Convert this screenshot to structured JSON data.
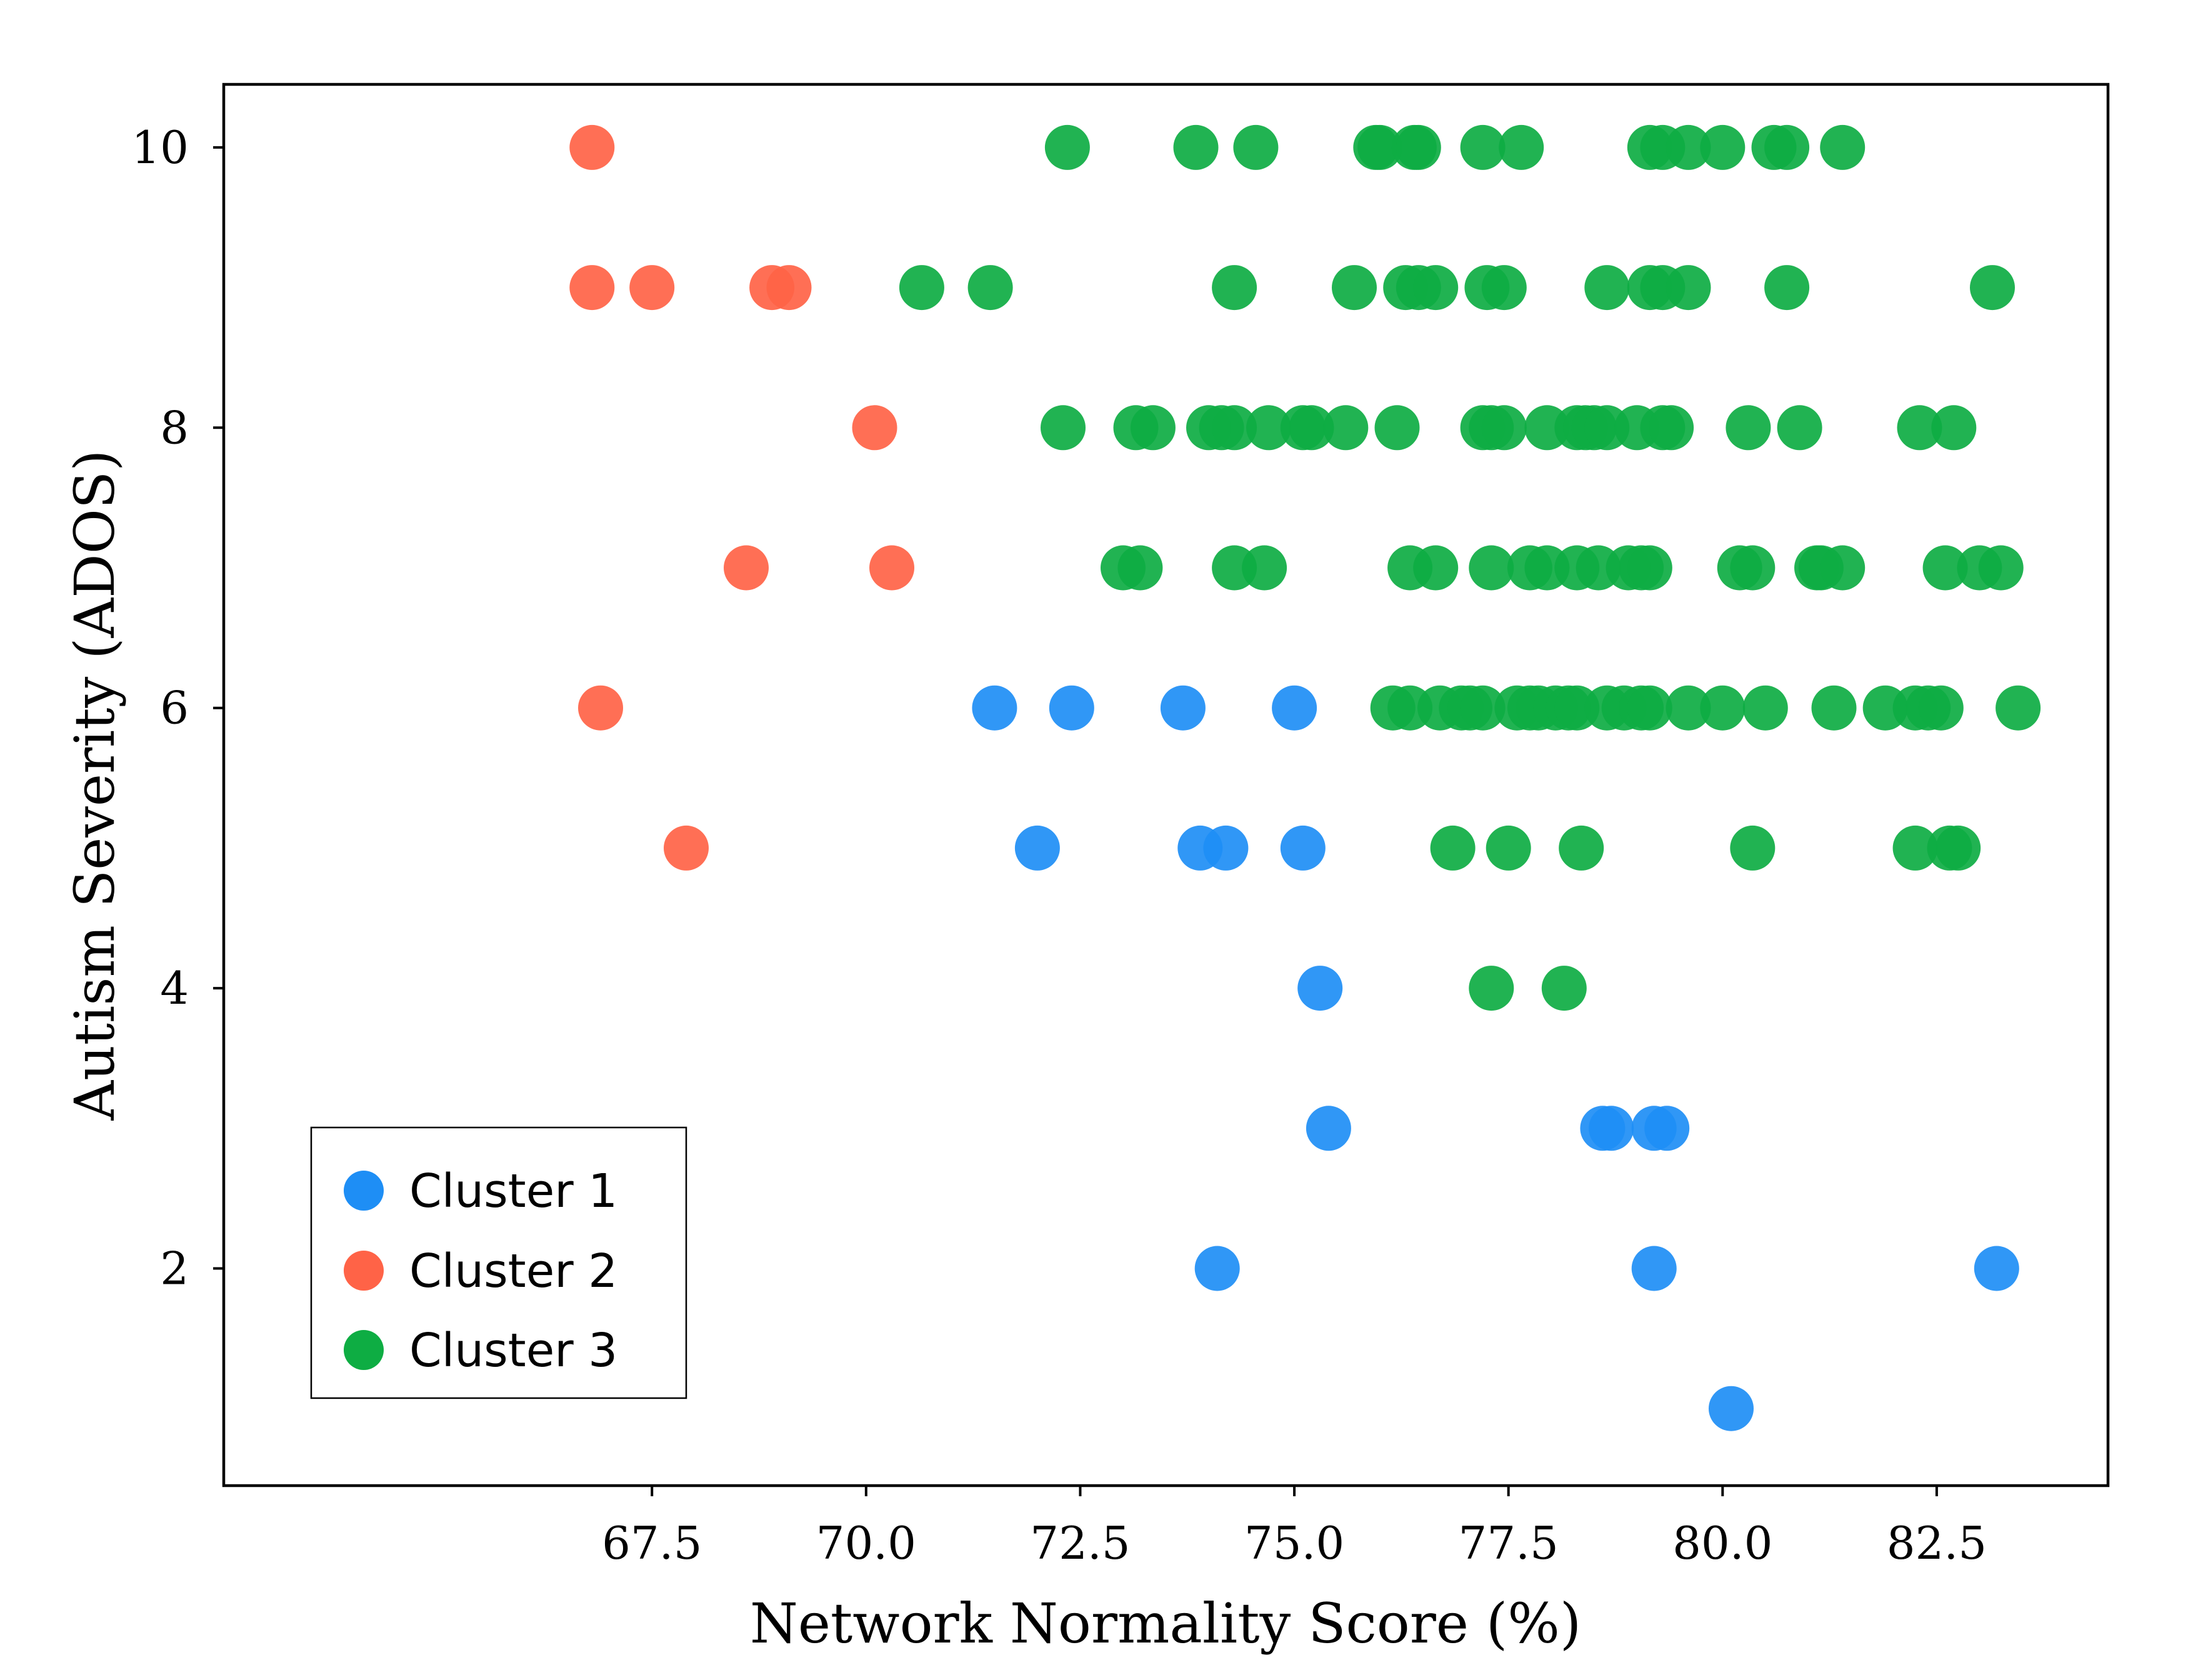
{
  "chart_data": {
    "type": "scatter",
    "xlabel": "Network Normality Score (%)",
    "ylabel": "Autism Severity (ADOS)",
    "xlim": [
      62.5,
      84.5
    ],
    "ylim": [
      0.45,
      10.45
    ],
    "xticks": [
      67.5,
      70.0,
      72.5,
      75.0,
      77.5,
      80.0,
      82.5
    ],
    "xtick_labels": [
      "67.5",
      "70.0",
      "72.5",
      "75.0",
      "77.5",
      "80.0",
      "82.5"
    ],
    "yticks": [
      2,
      4,
      6,
      8,
      10
    ],
    "ytick_labels": [
      "2",
      "4",
      "6",
      "8",
      "10"
    ],
    "grid": false,
    "legend_position": "lower-left",
    "series": [
      {
        "name": "Cluster 1",
        "color": "#1e8ef5",
        "points": [
          [
            71.5,
            6
          ],
          [
            72.4,
            6
          ],
          [
            73.7,
            6
          ],
          [
            75.0,
            6
          ],
          [
            72.0,
            5
          ],
          [
            73.9,
            5
          ],
          [
            74.2,
            5
          ],
          [
            75.1,
            5
          ],
          [
            75.3,
            4
          ],
          [
            75.4,
            3
          ],
          [
            78.6,
            3
          ],
          [
            78.7,
            3
          ],
          [
            79.2,
            3
          ],
          [
            79.35,
            3
          ],
          [
            74.1,
            2
          ],
          [
            79.2,
            2
          ],
          [
            83.2,
            2
          ],
          [
            80.1,
            1
          ]
        ]
      },
      {
        "name": "Cluster 2",
        "color": "#ff6347",
        "points": [
          [
            66.8,
            10
          ],
          [
            66.8,
            9
          ],
          [
            67.5,
            9
          ],
          [
            68.9,
            9
          ],
          [
            69.1,
            9
          ],
          [
            70.1,
            8
          ],
          [
            68.6,
            7
          ],
          [
            70.3,
            7
          ],
          [
            66.9,
            6
          ],
          [
            67.9,
            5
          ]
        ]
      },
      {
        "name": "Cluster 3",
        "color": "#0ead43",
        "points": [
          [
            72.35,
            10
          ],
          [
            73.85,
            10
          ],
          [
            74.55,
            10
          ],
          [
            75.95,
            10
          ],
          [
            76.0,
            10
          ],
          [
            76.4,
            10
          ],
          [
            76.45,
            10
          ],
          [
            77.2,
            10
          ],
          [
            77.65,
            10
          ],
          [
            79.15,
            10
          ],
          [
            79.3,
            10
          ],
          [
            79.6,
            10
          ],
          [
            80.0,
            10
          ],
          [
            80.6,
            10
          ],
          [
            80.75,
            10
          ],
          [
            81.4,
            10
          ],
          [
            70.65,
            9
          ],
          [
            71.45,
            9
          ],
          [
            74.3,
            9
          ],
          [
            75.7,
            9
          ],
          [
            76.3,
            9
          ],
          [
            76.45,
            9
          ],
          [
            76.65,
            9
          ],
          [
            77.25,
            9
          ],
          [
            77.45,
            9
          ],
          [
            78.65,
            9
          ],
          [
            79.15,
            9
          ],
          [
            79.3,
            9
          ],
          [
            79.6,
            9
          ],
          [
            80.75,
            9
          ],
          [
            83.15,
            9
          ],
          [
            72.3,
            8
          ],
          [
            73.15,
            8
          ],
          [
            73.35,
            8
          ],
          [
            74.0,
            8
          ],
          [
            74.15,
            8
          ],
          [
            74.3,
            8
          ],
          [
            74.7,
            8
          ],
          [
            75.1,
            8
          ],
          [
            75.2,
            8
          ],
          [
            75.6,
            8
          ],
          [
            76.2,
            8
          ],
          [
            77.2,
            8
          ],
          [
            77.3,
            8
          ],
          [
            77.45,
            8
          ],
          [
            77.95,
            8
          ],
          [
            78.3,
            8
          ],
          [
            78.4,
            8
          ],
          [
            78.5,
            8
          ],
          [
            78.65,
            8
          ],
          [
            79.0,
            8
          ],
          [
            79.3,
            8
          ],
          [
            79.4,
            8
          ],
          [
            80.3,
            8
          ],
          [
            80.9,
            8
          ],
          [
            82.3,
            8
          ],
          [
            82.7,
            8
          ],
          [
            73.0,
            7
          ],
          [
            73.2,
            7
          ],
          [
            74.3,
            7
          ],
          [
            74.65,
            7
          ],
          [
            76.35,
            7
          ],
          [
            76.65,
            7
          ],
          [
            77.3,
            7
          ],
          [
            77.75,
            7
          ],
          [
            77.95,
            7
          ],
          [
            78.3,
            7
          ],
          [
            78.55,
            7
          ],
          [
            78.9,
            7
          ],
          [
            79.05,
            7
          ],
          [
            79.15,
            7
          ],
          [
            80.2,
            7
          ],
          [
            80.35,
            7
          ],
          [
            81.1,
            7
          ],
          [
            81.15,
            7
          ],
          [
            81.4,
            7
          ],
          [
            82.6,
            7
          ],
          [
            83.0,
            7
          ],
          [
            83.25,
            7
          ],
          [
            76.15,
            6
          ],
          [
            76.35,
            6
          ],
          [
            76.7,
            6
          ],
          [
            76.95,
            6
          ],
          [
            77.05,
            6
          ],
          [
            77.2,
            6
          ],
          [
            77.6,
            6
          ],
          [
            77.75,
            6
          ],
          [
            77.85,
            6
          ],
          [
            78.05,
            6
          ],
          [
            78.2,
            6
          ],
          [
            78.3,
            6
          ],
          [
            78.65,
            6
          ],
          [
            78.85,
            6
          ],
          [
            79.05,
            6
          ],
          [
            79.15,
            6
          ],
          [
            79.6,
            6
          ],
          [
            80.0,
            6
          ],
          [
            80.5,
            6
          ],
          [
            81.3,
            6
          ],
          [
            81.9,
            6
          ],
          [
            82.25,
            6
          ],
          [
            82.4,
            6
          ],
          [
            82.55,
            6
          ],
          [
            83.45,
            6
          ],
          [
            76.85,
            5
          ],
          [
            77.5,
            5
          ],
          [
            78.35,
            5
          ],
          [
            80.35,
            5
          ],
          [
            82.25,
            5
          ],
          [
            82.65,
            5
          ],
          [
            82.75,
            5
          ],
          [
            77.3,
            4
          ],
          [
            78.15,
            4
          ]
        ]
      }
    ]
  }
}
